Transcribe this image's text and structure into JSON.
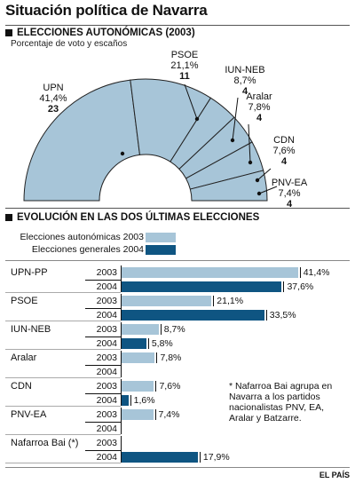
{
  "title": "Situación política de Navarra",
  "section1": {
    "heading": "ELECCIONES AUTONÓMICAS (2003)",
    "subtitle": "Porcentaje de voto y escaños"
  },
  "section2": {
    "heading": "EVOLUCIÓN EN LAS DOS ÚLTIMAS ELECCIONES",
    "legend": [
      {
        "label": "Elecciones autonómicas 2003",
        "color": "#a7c5d8"
      },
      {
        "label": "Elecciones generales 2004",
        "color": "#0f5582"
      }
    ]
  },
  "note": "* Nafarroa Bai agrupa en Navarra a los partidos nacionalistas PNV, EA, Aralar y Batzarre.",
  "source": "EL PAÍS",
  "colors": {
    "light": "#a7c5d8",
    "dark": "#0f5582",
    "outline": "#222222"
  },
  "chart_data": [
    {
      "type": "pie",
      "variant": "hemicycle",
      "title": "ELECCIONES AUTONÓMICAS (2003)",
      "subtitle": "Porcentaje de voto y escaños",
      "slices": [
        {
          "name": "UPN",
          "percent_label": "41,4%",
          "percent": 41.4,
          "seats": 23
        },
        {
          "name": "PSOE",
          "percent_label": "21,1%",
          "percent": 21.1,
          "seats": 11
        },
        {
          "name": "IUN-NEB",
          "percent_label": "8,7%",
          "percent": 8.7,
          "seats": 4
        },
        {
          "name": "Aralar",
          "percent_label": "7,8%",
          "percent": 7.8,
          "seats": 4
        },
        {
          "name": "CDN",
          "percent_label": "7,6%",
          "percent": 7.6,
          "seats": 4
        },
        {
          "name": "PNV-EA",
          "percent_label": "7,4%",
          "percent": 7.4,
          "seats": 4
        }
      ]
    },
    {
      "type": "bar",
      "orientation": "horizontal",
      "title": "EVOLUCIÓN EN LAS DOS ÚLTIMAS ELECCIONES",
      "xlim": [
        0,
        42
      ],
      "legend_position": "top-left",
      "series": [
        {
          "name": "Elecciones autonómicas 2003",
          "year_label": "2003"
        },
        {
          "name": "Elecciones generales 2004",
          "year_label": "2004"
        }
      ],
      "groups": [
        {
          "party": "UPN-PP",
          "values": [
            41.4,
            37.6
          ],
          "labels": [
            "41,4%",
            "37,6%"
          ]
        },
        {
          "party": "PSOE",
          "values": [
            21.1,
            33.5
          ],
          "labels": [
            "21,1%",
            "33,5%"
          ]
        },
        {
          "party": "IUN-NEB",
          "values": [
            8.7,
            5.8
          ],
          "labels": [
            "8,7%",
            "5,8%"
          ]
        },
        {
          "party": "Aralar",
          "values": [
            7.8,
            null
          ],
          "labels": [
            "7,8%",
            ""
          ]
        },
        {
          "party": "CDN",
          "values": [
            7.6,
            1.6
          ],
          "labels": [
            "7,6%",
            "1,6%"
          ]
        },
        {
          "party": "PNV-EA",
          "values": [
            7.4,
            null
          ],
          "labels": [
            "7,4%",
            ""
          ]
        },
        {
          "party": "Nafarroa Bai (*)",
          "values": [
            null,
            17.9
          ],
          "labels": [
            "",
            "17,9%"
          ]
        }
      ]
    }
  ]
}
